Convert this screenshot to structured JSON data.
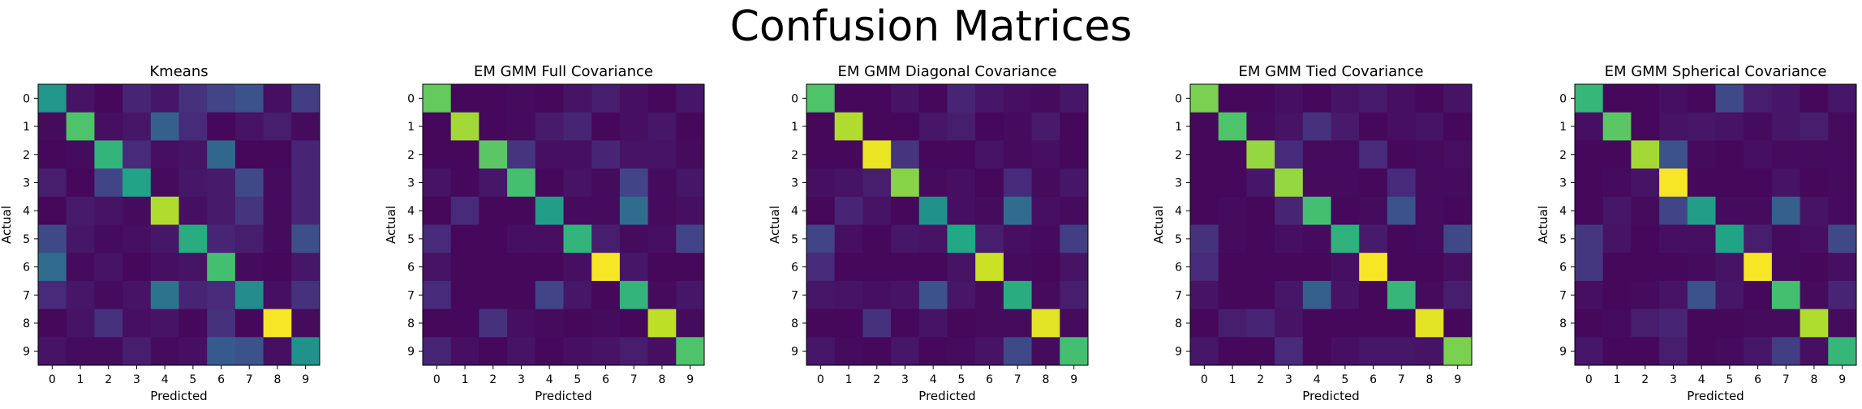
{
  "suptitle": "Confusion Matrices",
  "chart_data": [
    {
      "type": "heatmap",
      "title": "Kmeans",
      "xlabel": "Predicted",
      "ylabel": "Actual",
      "x_ticks": [
        "0",
        "1",
        "2",
        "3",
        "4",
        "5",
        "6",
        "7",
        "8",
        "9"
      ],
      "y_ticks": [
        "0",
        "1",
        "2",
        "3",
        "4",
        "5",
        "6",
        "7",
        "8",
        "9"
      ],
      "colormap": "viridis",
      "vmin": 0,
      "vmax": 1,
      "values": [
        [
          0.52,
          0.05,
          0.02,
          0.1,
          0.06,
          0.14,
          0.2,
          0.25,
          0.04,
          0.18
        ],
        [
          0.03,
          0.72,
          0.04,
          0.06,
          0.3,
          0.12,
          0.02,
          0.05,
          0.08,
          0.03
        ],
        [
          0.02,
          0.03,
          0.65,
          0.12,
          0.04,
          0.05,
          0.33,
          0.02,
          0.02,
          0.1
        ],
        [
          0.08,
          0.02,
          0.2,
          0.58,
          0.03,
          0.06,
          0.07,
          0.22,
          0.03,
          0.1
        ],
        [
          0.02,
          0.07,
          0.05,
          0.03,
          0.88,
          0.04,
          0.07,
          0.15,
          0.03,
          0.1
        ],
        [
          0.22,
          0.06,
          0.03,
          0.04,
          0.06,
          0.62,
          0.1,
          0.08,
          0.03,
          0.24
        ],
        [
          0.35,
          0.03,
          0.05,
          0.02,
          0.04,
          0.05,
          0.7,
          0.03,
          0.02,
          0.06
        ],
        [
          0.12,
          0.06,
          0.03,
          0.05,
          0.38,
          0.1,
          0.12,
          0.48,
          0.04,
          0.14
        ],
        [
          0.02,
          0.05,
          0.14,
          0.04,
          0.05,
          0.02,
          0.14,
          0.02,
          0.99,
          0.03
        ],
        [
          0.05,
          0.03,
          0.03,
          0.08,
          0.03,
          0.04,
          0.28,
          0.25,
          0.04,
          0.5
        ]
      ]
    },
    {
      "type": "heatmap",
      "title": "EM GMM Full Covariance",
      "xlabel": "Predicted",
      "ylabel": "Actual",
      "x_ticks": [
        "0",
        "1",
        "2",
        "3",
        "4",
        "5",
        "6",
        "7",
        "8",
        "9"
      ],
      "y_ticks": [
        "0",
        "1",
        "2",
        "3",
        "4",
        "5",
        "6",
        "7",
        "8",
        "9"
      ],
      "colormap": "viridis",
      "vmin": 0,
      "vmax": 1,
      "values": [
        [
          0.76,
          0.02,
          0.02,
          0.03,
          0.02,
          0.05,
          0.08,
          0.04,
          0.02,
          0.06
        ],
        [
          0.02,
          0.86,
          0.02,
          0.03,
          0.07,
          0.1,
          0.02,
          0.04,
          0.06,
          0.02
        ],
        [
          0.02,
          0.02,
          0.74,
          0.15,
          0.04,
          0.04,
          0.1,
          0.05,
          0.05,
          0.03
        ],
        [
          0.05,
          0.02,
          0.06,
          0.7,
          0.02,
          0.05,
          0.03,
          0.2,
          0.03,
          0.06
        ],
        [
          0.02,
          0.12,
          0.02,
          0.02,
          0.55,
          0.03,
          0.03,
          0.35,
          0.03,
          0.04
        ],
        [
          0.12,
          0.02,
          0.02,
          0.04,
          0.04,
          0.65,
          0.08,
          0.03,
          0.04,
          0.2
        ],
        [
          0.05,
          0.02,
          0.02,
          0.02,
          0.02,
          0.04,
          0.99,
          0.06,
          0.02,
          0.02
        ],
        [
          0.12,
          0.02,
          0.02,
          0.02,
          0.2,
          0.06,
          0.02,
          0.65,
          0.03,
          0.06
        ],
        [
          0.02,
          0.02,
          0.14,
          0.04,
          0.03,
          0.02,
          0.03,
          0.02,
          0.9,
          0.03
        ],
        [
          0.1,
          0.04,
          0.02,
          0.05,
          0.02,
          0.04,
          0.05,
          0.08,
          0.04,
          0.72
        ]
      ]
    },
    {
      "type": "heatmap",
      "title": "EM GMM Diagonal Covariance",
      "xlabel": "Predicted",
      "ylabel": "Actual",
      "x_ticks": [
        "0",
        "1",
        "2",
        "3",
        "4",
        "5",
        "6",
        "7",
        "8",
        "9"
      ],
      "y_ticks": [
        "0",
        "1",
        "2",
        "3",
        "4",
        "5",
        "6",
        "7",
        "8",
        "9"
      ],
      "colormap": "viridis",
      "vmin": 0,
      "vmax": 1,
      "values": [
        [
          0.72,
          0.02,
          0.02,
          0.05,
          0.02,
          0.1,
          0.06,
          0.04,
          0.03,
          0.06
        ],
        [
          0.02,
          0.88,
          0.02,
          0.02,
          0.06,
          0.08,
          0.02,
          0.03,
          0.07,
          0.02
        ],
        [
          0.02,
          0.02,
          0.97,
          0.15,
          0.02,
          0.02,
          0.05,
          0.03,
          0.04,
          0.02
        ],
        [
          0.04,
          0.05,
          0.08,
          0.82,
          0.03,
          0.04,
          0.02,
          0.12,
          0.03,
          0.06
        ],
        [
          0.02,
          0.1,
          0.05,
          0.02,
          0.5,
          0.04,
          0.03,
          0.35,
          0.04,
          0.03
        ],
        [
          0.2,
          0.04,
          0.02,
          0.06,
          0.05,
          0.6,
          0.08,
          0.04,
          0.03,
          0.18
        ],
        [
          0.12,
          0.02,
          0.02,
          0.02,
          0.02,
          0.05,
          0.92,
          0.03,
          0.02,
          0.05
        ],
        [
          0.06,
          0.05,
          0.04,
          0.05,
          0.25,
          0.06,
          0.03,
          0.62,
          0.03,
          0.08
        ],
        [
          0.02,
          0.02,
          0.14,
          0.02,
          0.05,
          0.02,
          0.03,
          0.03,
          0.96,
          0.03
        ],
        [
          0.06,
          0.03,
          0.02,
          0.06,
          0.02,
          0.03,
          0.05,
          0.22,
          0.03,
          0.7
        ]
      ]
    },
    {
      "type": "heatmap",
      "title": "EM GMM Tied Covariance",
      "xlabel": "Predicted",
      "ylabel": "Actual",
      "x_ticks": [
        "0",
        "1",
        "2",
        "3",
        "4",
        "5",
        "6",
        "7",
        "8",
        "9"
      ],
      "y_ticks": [
        "0",
        "1",
        "2",
        "3",
        "4",
        "5",
        "6",
        "7",
        "8",
        "9"
      ],
      "colormap": "viridis",
      "vmin": 0,
      "vmax": 1,
      "values": [
        [
          0.8,
          0.02,
          0.02,
          0.04,
          0.02,
          0.05,
          0.07,
          0.04,
          0.02,
          0.05
        ],
        [
          0.02,
          0.72,
          0.03,
          0.05,
          0.14,
          0.07,
          0.02,
          0.04,
          0.05,
          0.02
        ],
        [
          0.02,
          0.02,
          0.84,
          0.12,
          0.03,
          0.03,
          0.12,
          0.02,
          0.03,
          0.04
        ],
        [
          0.02,
          0.02,
          0.06,
          0.84,
          0.03,
          0.03,
          0.02,
          0.12,
          0.03,
          0.03
        ],
        [
          0.02,
          0.03,
          0.02,
          0.1,
          0.7,
          0.02,
          0.03,
          0.25,
          0.03,
          0.02
        ],
        [
          0.14,
          0.03,
          0.02,
          0.04,
          0.03,
          0.64,
          0.07,
          0.02,
          0.03,
          0.22
        ],
        [
          0.12,
          0.02,
          0.02,
          0.02,
          0.02,
          0.04,
          0.99,
          0.02,
          0.02,
          0.04
        ],
        [
          0.05,
          0.02,
          0.02,
          0.06,
          0.3,
          0.05,
          0.02,
          0.66,
          0.03,
          0.08
        ],
        [
          0.02,
          0.08,
          0.1,
          0.05,
          0.02,
          0.02,
          0.02,
          0.02,
          0.96,
          0.02
        ],
        [
          0.06,
          0.02,
          0.02,
          0.12,
          0.02,
          0.04,
          0.06,
          0.06,
          0.05,
          0.8
        ]
      ]
    },
    {
      "type": "heatmap",
      "title": "EM GMM Spherical Covariance",
      "xlabel": "Predicted",
      "ylabel": "Actual",
      "x_ticks": [
        "0",
        "1",
        "2",
        "3",
        "4",
        "5",
        "6",
        "7",
        "8",
        "9"
      ],
      "y_ticks": [
        "0",
        "1",
        "2",
        "3",
        "4",
        "5",
        "6",
        "7",
        "8",
        "9"
      ],
      "colormap": "viridis",
      "vmin": 0,
      "vmax": 1,
      "values": [
        [
          0.66,
          0.02,
          0.02,
          0.04,
          0.02,
          0.22,
          0.08,
          0.06,
          0.02,
          0.06
        ],
        [
          0.04,
          0.74,
          0.02,
          0.05,
          0.06,
          0.05,
          0.03,
          0.06,
          0.08,
          0.03
        ],
        [
          0.02,
          0.02,
          0.86,
          0.25,
          0.03,
          0.02,
          0.04,
          0.03,
          0.03,
          0.03
        ],
        [
          0.02,
          0.03,
          0.05,
          0.99,
          0.02,
          0.02,
          0.02,
          0.05,
          0.02,
          0.03
        ],
        [
          0.02,
          0.06,
          0.03,
          0.2,
          0.55,
          0.03,
          0.03,
          0.3,
          0.05,
          0.03
        ],
        [
          0.16,
          0.05,
          0.02,
          0.04,
          0.04,
          0.58,
          0.08,
          0.03,
          0.04,
          0.22
        ],
        [
          0.16,
          0.02,
          0.02,
          0.02,
          0.03,
          0.05,
          0.99,
          0.03,
          0.02,
          0.04
        ],
        [
          0.04,
          0.02,
          0.03,
          0.05,
          0.25,
          0.06,
          0.02,
          0.7,
          0.03,
          0.1
        ],
        [
          0.02,
          0.03,
          0.08,
          0.1,
          0.02,
          0.02,
          0.03,
          0.03,
          0.88,
          0.03
        ],
        [
          0.06,
          0.02,
          0.02,
          0.08,
          0.02,
          0.03,
          0.06,
          0.18,
          0.04,
          0.66
        ]
      ]
    }
  ]
}
